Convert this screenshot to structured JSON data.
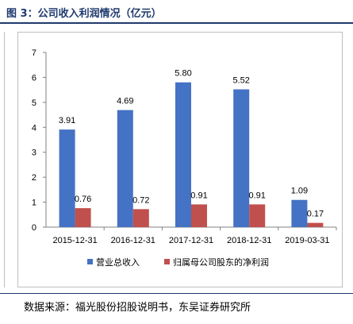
{
  "title": "图 3：公司收入利润情况（亿元）",
  "source": "数据来源：福光股份招股说明书，东吴证券研究所",
  "colors": {
    "revenue": "#4472C4",
    "profit": "#C0504D",
    "accent": "#1f3a6e"
  },
  "chart_data": {
    "type": "bar",
    "categories": [
      "2015-12-31",
      "2016-12-31",
      "2017-12-31",
      "2018-12-31",
      "2019-03-31"
    ],
    "series": [
      {
        "name": "营业总收入",
        "values": [
          3.91,
          4.69,
          5.8,
          5.52,
          1.09
        ],
        "labels": [
          "3.91",
          "4.69",
          "5.80",
          "5.52",
          "1.09"
        ]
      },
      {
        "name": "归属母公司股东的净利润",
        "values": [
          0.76,
          0.72,
          0.91,
          0.91,
          0.17
        ],
        "labels": [
          "0.76",
          "0.72",
          "0.91",
          "0.91",
          "0.17"
        ]
      }
    ],
    "ylim": [
      0,
      7
    ],
    "yticks": [
      "0",
      "1",
      "2",
      "3",
      "4",
      "5",
      "6",
      "7"
    ],
    "grid": false,
    "legend": "bottom"
  }
}
